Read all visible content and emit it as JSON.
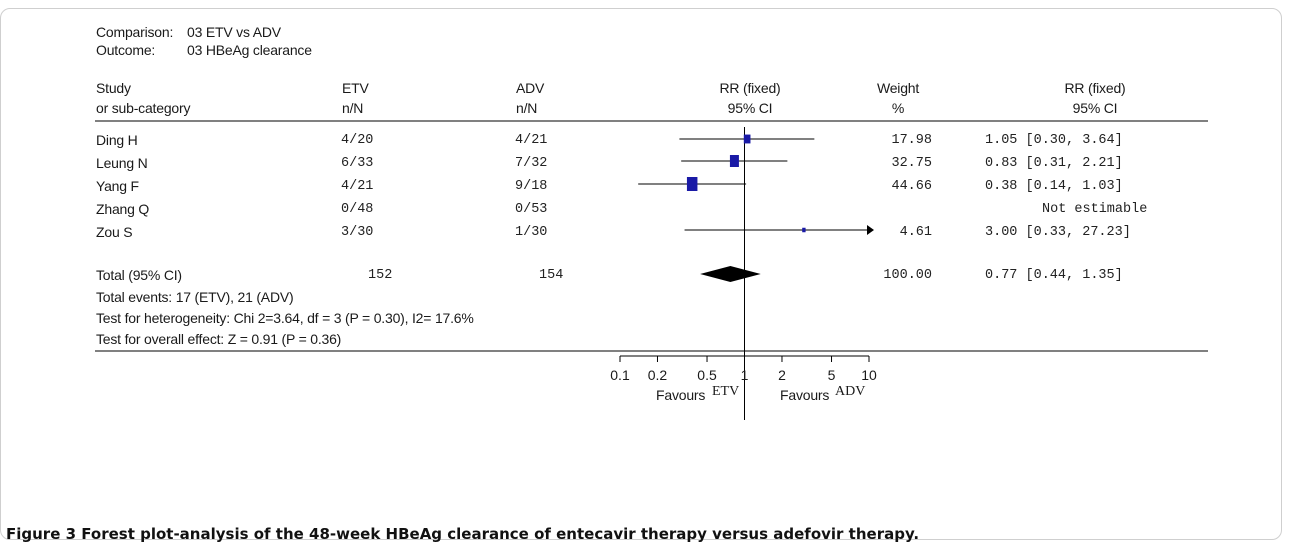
{
  "header": {
    "comparison_label": "Comparison:",
    "comparison_value": "03 ETV vs ADV",
    "outcome_label": "Outcome:",
    "outcome_value": "03 HBeAg clearance"
  },
  "columns": {
    "study": "Study",
    "study_sub": "or sub-category",
    "etv": "ETV",
    "etv_sub": "n/N",
    "adv": "ADV",
    "adv_sub": "n/N",
    "rr": "RR (fixed)",
    "rr_sub": "95% CI",
    "weight": "Weight",
    "weight_sub": "%",
    "rr2": "RR (fixed)",
    "rr2_sub": "95% CI"
  },
  "rows": [
    {
      "study": "Ding H",
      "etv": "4/20",
      "adv": "4/21",
      "weight": "17.98",
      "ci_text": "1.05 [0.30, 3.64]"
    },
    {
      "study": "Leung N",
      "etv": "6/33",
      "adv": "7/32",
      "weight": "32.75",
      "ci_text": "0.83 [0.31, 2.21]"
    },
    {
      "study": "Yang F",
      "etv": "4/21",
      "adv": "9/18",
      "weight": "44.66",
      "ci_text": "0.38 [0.14, 1.03]"
    },
    {
      "study": "Zhang Q",
      "etv": "0/48",
      "adv": "0/53",
      "weight": "",
      "ci_text": "Not estimable"
    },
    {
      "study": "Zou S",
      "etv": "3/30",
      "adv": "1/30",
      "weight": "4.61",
      "ci_text": "3.00 [0.33, 27.23]"
    }
  ],
  "total": {
    "label": "Total (95% CI)",
    "etv": "152",
    "adv": "154",
    "weight": "100.00",
    "ci_text": "0.77 [0.44, 1.35]"
  },
  "footnotes": [
    "Total events: 17 (ETV), 21 (ADV)",
    "Test for heterogeneity: Chi 2=3.64, df = 3 (P = 0.30), I2= 17.6%",
    "Test for overall effect: Z = 0.91 (P = 0.36)"
  ],
  "axis": {
    "favours_left_prefix": "Favours",
    "favours_left": "ETV",
    "favours_right_prefix": "Favours",
    "favours_right": "ADV"
  },
  "caption": "Figure 3 Forest plot-analysis of the 48-week HBeAg clearance of entecavir therapy versus adefovir therapy.",
  "colors": {
    "marker": "#1a1aa6",
    "diamond": "#000000",
    "line": "#000000"
  },
  "chart_data": {
    "type": "forest",
    "scale": "log",
    "xlim": [
      0.1,
      10
    ],
    "ticks": [
      0.1,
      0.2,
      0.5,
      1,
      2,
      5,
      10
    ],
    "tick_labels": [
      "0.1",
      "0.2",
      "0.5",
      "1",
      "2",
      "5",
      "10"
    ],
    "null_value": 1,
    "studies": [
      {
        "name": "Ding H",
        "rr": 1.05,
        "lo": 0.3,
        "hi": 3.64,
        "weight": 17.98
      },
      {
        "name": "Leung N",
        "rr": 0.83,
        "lo": 0.31,
        "hi": 2.21,
        "weight": 32.75
      },
      {
        "name": "Yang F",
        "rr": 0.38,
        "lo": 0.14,
        "hi": 1.03,
        "weight": 44.66
      },
      {
        "name": "Zhang Q",
        "rr": null,
        "lo": null,
        "hi": null,
        "weight": null
      },
      {
        "name": "Zou S",
        "rr": 3.0,
        "lo": 0.33,
        "hi": 27.23,
        "weight": 4.61
      }
    ],
    "pooled": {
      "rr": 0.77,
      "lo": 0.44,
      "hi": 1.35,
      "weight": 100.0
    }
  }
}
